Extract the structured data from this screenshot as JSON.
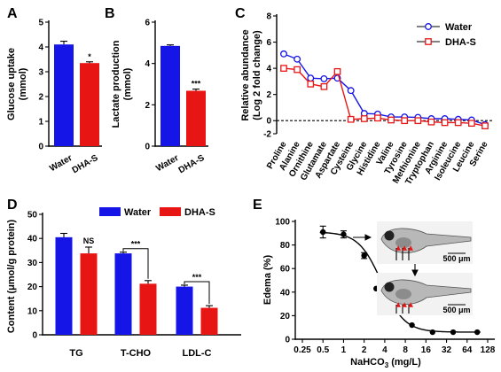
{
  "panel_letters": [
    "A",
    "B",
    "C",
    "D",
    "E"
  ],
  "colors": {
    "water": "#1515e8",
    "dhas": "#e81515",
    "black": "#000000"
  },
  "chart_data": [
    {
      "panel": "A",
      "type": "bar",
      "categories": [
        "Water",
        "DHA-S"
      ],
      "values": [
        4.1,
        3.35
      ],
      "errors": [
        0.13,
        0.05
      ],
      "ylabel": "Glucose uptake (mmol)",
      "ylabel_lines": [
        "Glucose uptake",
        "(mmol)"
      ],
      "ylim": [
        0,
        5
      ],
      "yticks": [
        "0",
        "1",
        "2",
        "3",
        "4",
        "5"
      ],
      "significance": [
        "",
        "*"
      ]
    },
    {
      "panel": "B",
      "type": "bar",
      "categories": [
        "Water",
        "DHA-S"
      ],
      "values": [
        4.85,
        2.68
      ],
      "errors": [
        0.05,
        0.08
      ],
      "ylabel": "Lactate production (mmol)",
      "ylabel_lines": [
        "Lactate production",
        "(mmol)"
      ],
      "ylim": [
        0,
        6
      ],
      "yticks": [
        "0",
        "2",
        "4",
        "6"
      ],
      "significance": [
        "",
        "***"
      ]
    },
    {
      "panel": "C",
      "type": "line",
      "categories": [
        "Proline",
        "Alanine",
        "Ornithine",
        "Glutamate",
        "Aspartate",
        "Cysteine",
        "Glycine",
        "Histidine",
        "Valine",
        "Tyrosine",
        "Methionine",
        "Tryptophan",
        "Arginine",
        "Isoleucine",
        "Leucine",
        "Serine"
      ],
      "series": [
        {
          "name": "Water",
          "values": [
            5.1,
            4.7,
            3.25,
            3.2,
            3.25,
            2.3,
            0.55,
            0.5,
            0.28,
            0.28,
            0.25,
            0.15,
            0.15,
            0.1,
            0.05,
            -0.3
          ]
        },
        {
          "name": "DHA-S",
          "values": [
            4.0,
            3.9,
            2.8,
            2.6,
            3.75,
            0.1,
            0.15,
            0.2,
            0.05,
            0.0,
            0.0,
            -0.1,
            -0.15,
            -0.15,
            -0.2,
            -0.4
          ]
        }
      ],
      "ylabel": "Relative abundance (Log 2 fold change)",
      "ylabel_lines": [
        "Relative abundance",
        "(Log 2 fold change)"
      ],
      "ylim": [
        -1,
        8
      ],
      "yticks": [
        "-2",
        "0",
        "2",
        "4",
        "6",
        "8"
      ],
      "reference_line_y": 0,
      "legend": [
        "Water",
        "DHA-S"
      ],
      "legend_position": "top-right"
    },
    {
      "panel": "D",
      "type": "bar",
      "categories": [
        "TG",
        "T-CHO",
        "LDL-C"
      ],
      "series": [
        {
          "name": "Water",
          "values": [
            40.5,
            33.8,
            20.0
          ],
          "errors": [
            1.6,
            0.5,
            0.6
          ]
        },
        {
          "name": "DHA-S",
          "values": [
            33.8,
            21.2,
            11.2
          ],
          "errors": [
            2.6,
            1.3,
            0.9
          ]
        }
      ],
      "ylabel": "Content (μmol/g protein)",
      "ylim": [
        0,
        50
      ],
      "yticks": [
        "0",
        "10",
        "20",
        "30",
        "40",
        "50"
      ],
      "significance": [
        "NS",
        "***",
        "***"
      ],
      "legend": [
        "Water",
        "DHA-S"
      ],
      "legend_position": "top"
    },
    {
      "panel": "E",
      "type": "scatter",
      "x": [
        0.5,
        1,
        2,
        3,
        6,
        10,
        20,
        40,
        90
      ],
      "y": [
        91,
        89,
        71,
        43,
        35,
        12,
        6,
        6,
        6
      ],
      "errors": [
        5,
        3,
        2.5,
        0,
        0,
        0,
        0,
        0,
        0
      ],
      "xscale": "log2",
      "xticks": [
        "0.25",
        "0.5",
        "1",
        "2",
        "4",
        "8",
        "16",
        "32",
        "64",
        "128"
      ],
      "xlim": [
        0.25,
        128
      ],
      "ylim": [
        0,
        100
      ],
      "yticks": [
        "0",
        "20",
        "40",
        "60",
        "80",
        "100"
      ],
      "xlabel": "NaHCO3 (mg/L)",
      "ylabel": "Edema (%)",
      "fit": "sigmoid",
      "scale_bar_labels": [
        "500 μm",
        "500 μm"
      ]
    }
  ]
}
